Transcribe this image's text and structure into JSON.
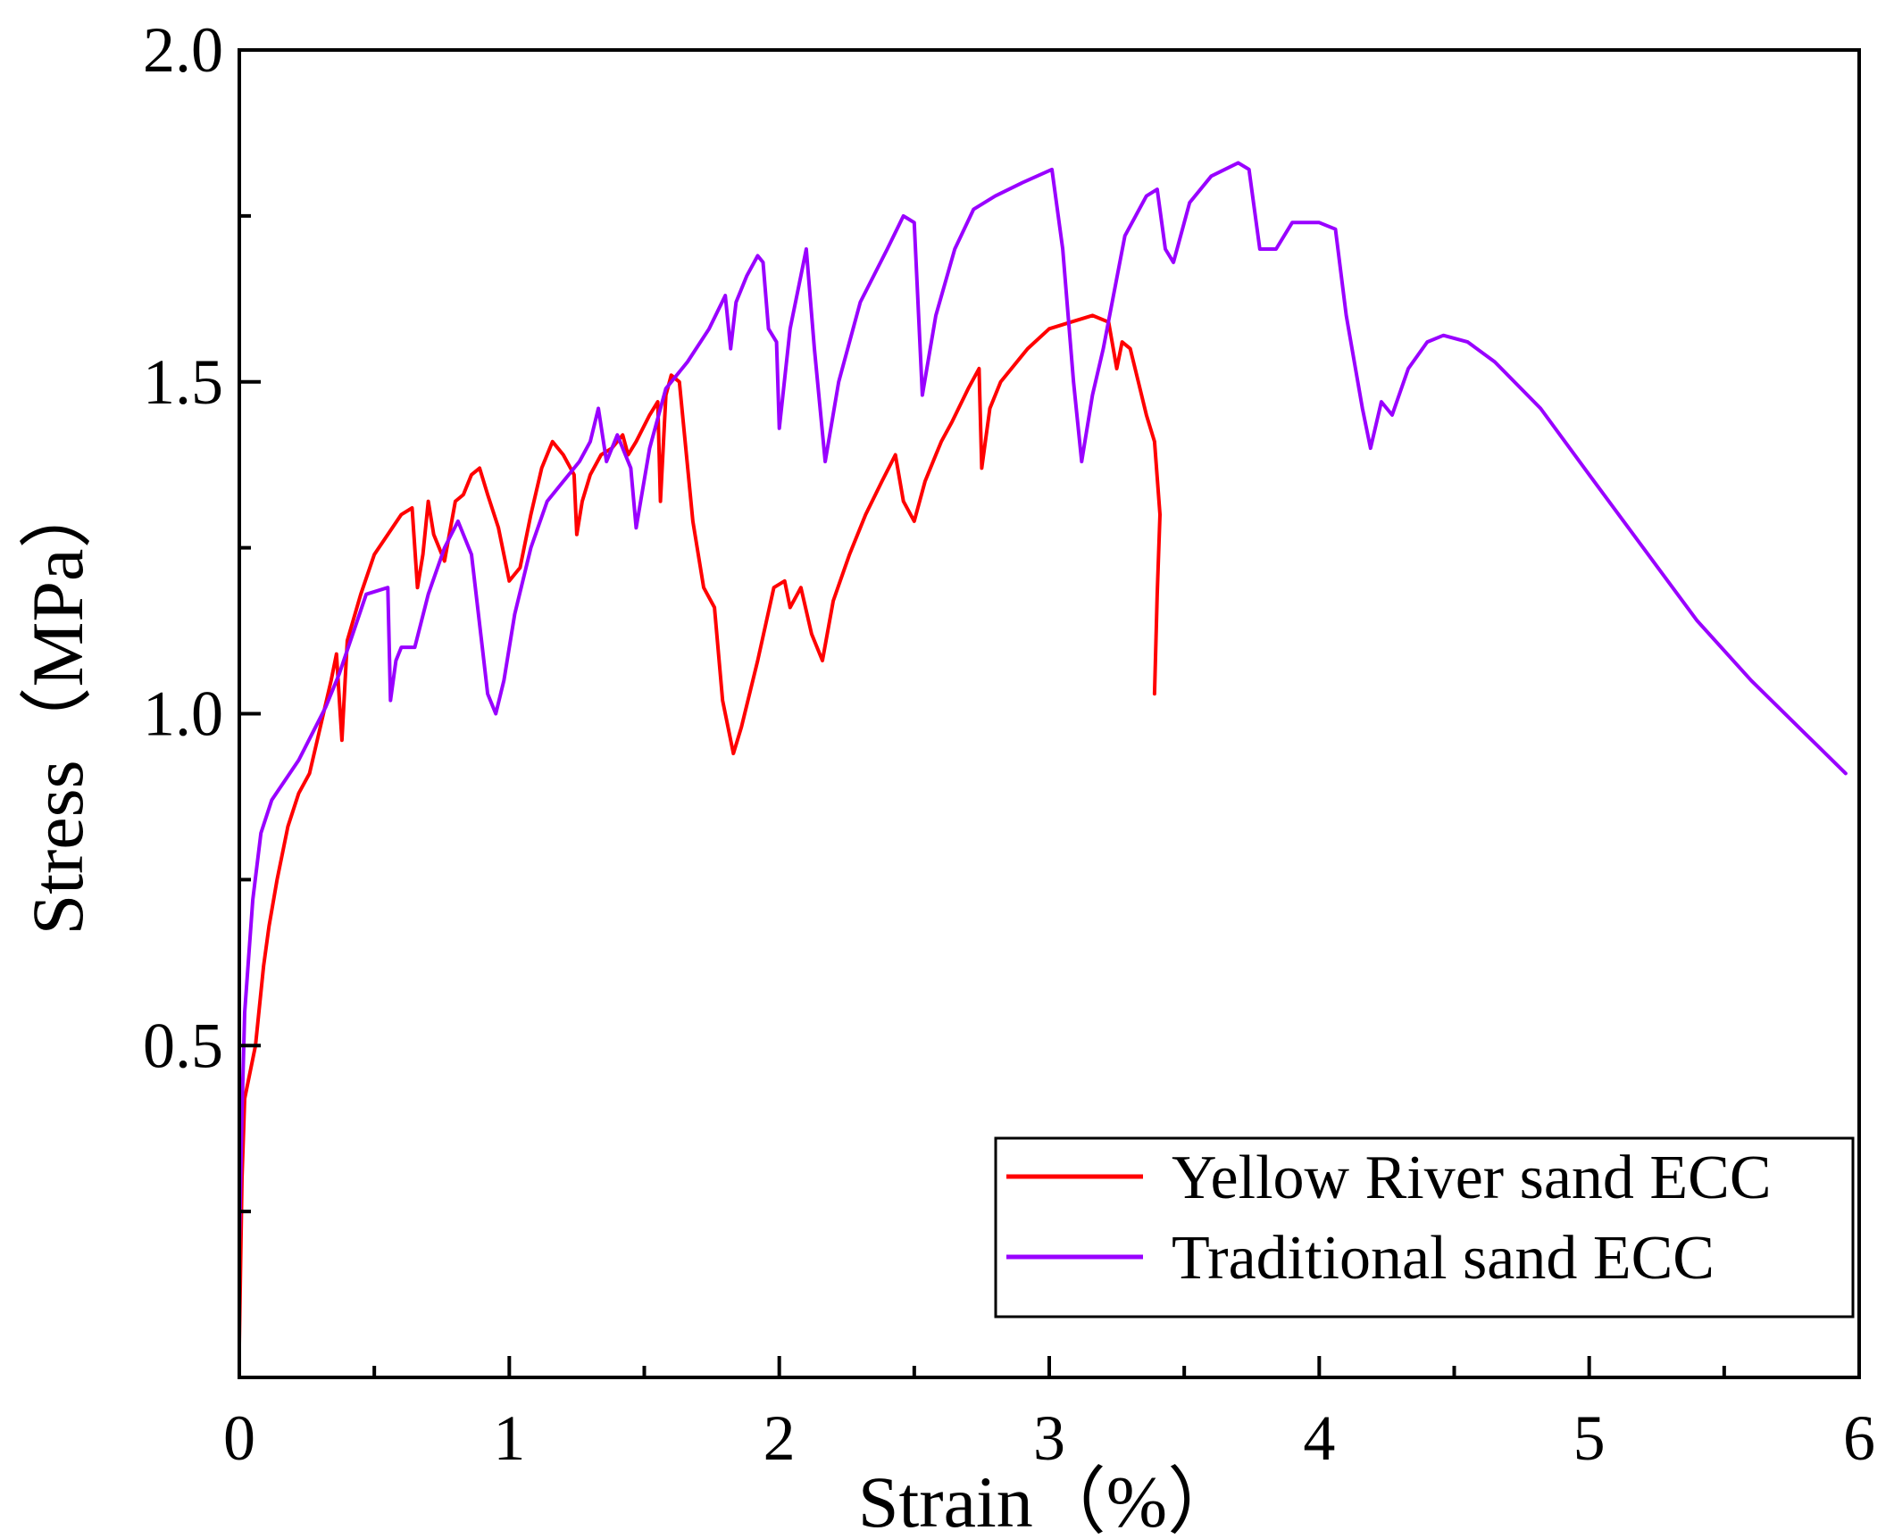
{
  "chart_data": {
    "type": "line",
    "title": "",
    "xlabel": "Strain（%）",
    "ylabel": "Stress（MPa）",
    "xlim": [
      0,
      6
    ],
    "ylim": [
      0,
      2.0
    ],
    "x_ticks": [
      "0",
      "1",
      "2",
      "3",
      "4",
      "5",
      "6"
    ],
    "y_ticks": [
      "0.5",
      "1.0",
      "1.5",
      "2.0"
    ],
    "grid": false,
    "legend_position": "bottom-right",
    "series": [
      {
        "name": "Yellow River sand ECC",
        "color": "#ff0000",
        "points": [
          [
            0.0,
            0.05
          ],
          [
            0.01,
            0.3
          ],
          [
            0.02,
            0.42
          ],
          [
            0.06,
            0.5
          ],
          [
            0.09,
            0.62
          ],
          [
            0.11,
            0.68
          ],
          [
            0.14,
            0.75
          ],
          [
            0.18,
            0.83
          ],
          [
            0.22,
            0.88
          ],
          [
            0.26,
            0.91
          ],
          [
            0.3,
            0.98
          ],
          [
            0.34,
            1.05
          ],
          [
            0.36,
            1.09
          ],
          [
            0.38,
            0.96
          ],
          [
            0.4,
            1.11
          ],
          [
            0.45,
            1.18
          ],
          [
            0.5,
            1.24
          ],
          [
            0.55,
            1.27
          ],
          [
            0.6,
            1.3
          ],
          [
            0.64,
            1.31
          ],
          [
            0.66,
            1.19
          ],
          [
            0.68,
            1.24
          ],
          [
            0.7,
            1.32
          ],
          [
            0.72,
            1.27
          ],
          [
            0.76,
            1.23
          ],
          [
            0.8,
            1.32
          ],
          [
            0.83,
            1.33
          ],
          [
            0.86,
            1.36
          ],
          [
            0.89,
            1.37
          ],
          [
            0.92,
            1.33
          ],
          [
            0.96,
            1.28
          ],
          [
            1.0,
            1.2
          ],
          [
            1.04,
            1.22
          ],
          [
            1.08,
            1.3
          ],
          [
            1.12,
            1.37
          ],
          [
            1.16,
            1.41
          ],
          [
            1.2,
            1.39
          ],
          [
            1.24,
            1.36
          ],
          [
            1.25,
            1.27
          ],
          [
            1.27,
            1.32
          ],
          [
            1.3,
            1.36
          ],
          [
            1.34,
            1.39
          ],
          [
            1.38,
            1.4
          ],
          [
            1.42,
            1.42
          ],
          [
            1.44,
            1.39
          ],
          [
            1.47,
            1.41
          ],
          [
            1.52,
            1.45
          ],
          [
            1.55,
            1.47
          ],
          [
            1.56,
            1.32
          ],
          [
            1.58,
            1.48
          ],
          [
            1.6,
            1.51
          ],
          [
            1.63,
            1.5
          ],
          [
            1.68,
            1.29
          ],
          [
            1.72,
            1.19
          ],
          [
            1.76,
            1.16
          ],
          [
            1.79,
            1.02
          ],
          [
            1.83,
            0.94
          ],
          [
            1.86,
            0.98
          ],
          [
            1.92,
            1.08
          ],
          [
            1.98,
            1.19
          ],
          [
            2.02,
            1.2
          ],
          [
            2.04,
            1.16
          ],
          [
            2.08,
            1.19
          ],
          [
            2.12,
            1.12
          ],
          [
            2.16,
            1.08
          ],
          [
            2.2,
            1.17
          ],
          [
            2.26,
            1.24
          ],
          [
            2.32,
            1.3
          ],
          [
            2.38,
            1.35
          ],
          [
            2.43,
            1.39
          ],
          [
            2.46,
            1.32
          ],
          [
            2.5,
            1.29
          ],
          [
            2.54,
            1.35
          ],
          [
            2.58,
            1.39
          ],
          [
            2.6,
            1.41
          ],
          [
            2.64,
            1.44
          ],
          [
            2.7,
            1.49
          ],
          [
            2.74,
            1.52
          ],
          [
            2.75,
            1.37
          ],
          [
            2.78,
            1.46
          ],
          [
            2.82,
            1.5
          ],
          [
            2.86,
            1.52
          ],
          [
            2.92,
            1.55
          ],
          [
            3.0,
            1.58
          ],
          [
            3.08,
            1.59
          ],
          [
            3.16,
            1.6
          ],
          [
            3.22,
            1.59
          ],
          [
            3.25,
            1.52
          ],
          [
            3.27,
            1.56
          ],
          [
            3.3,
            1.55
          ],
          [
            3.33,
            1.5
          ],
          [
            3.36,
            1.45
          ],
          [
            3.39,
            1.41
          ],
          [
            3.41,
            1.3
          ],
          [
            3.4,
            1.18
          ],
          [
            3.39,
            1.03
          ]
        ]
      },
      {
        "name": "Traditional sand ECC",
        "color": "#9900ff",
        "points": [
          [
            0.0,
            0.0
          ],
          [
            0.0,
            0.2
          ],
          [
            0.01,
            0.4
          ],
          [
            0.02,
            0.55
          ],
          [
            0.05,
            0.72
          ],
          [
            0.08,
            0.82
          ],
          [
            0.12,
            0.87
          ],
          [
            0.17,
            0.9
          ],
          [
            0.22,
            0.93
          ],
          [
            0.27,
            0.97
          ],
          [
            0.32,
            1.01
          ],
          [
            0.37,
            1.06
          ],
          [
            0.42,
            1.12
          ],
          [
            0.47,
            1.18
          ],
          [
            0.55,
            1.19
          ],
          [
            0.56,
            1.02
          ],
          [
            0.58,
            1.08
          ],
          [
            0.6,
            1.1
          ],
          [
            0.65,
            1.1
          ],
          [
            0.7,
            1.18
          ],
          [
            0.76,
            1.25
          ],
          [
            0.81,
            1.29
          ],
          [
            0.86,
            1.24
          ],
          [
            0.9,
            1.1
          ],
          [
            0.92,
            1.03
          ],
          [
            0.95,
            1.0
          ],
          [
            0.98,
            1.05
          ],
          [
            1.02,
            1.15
          ],
          [
            1.08,
            1.25
          ],
          [
            1.14,
            1.32
          ],
          [
            1.2,
            1.35
          ],
          [
            1.26,
            1.38
          ],
          [
            1.3,
            1.41
          ],
          [
            1.33,
            1.46
          ],
          [
            1.36,
            1.38
          ],
          [
            1.4,
            1.42
          ],
          [
            1.45,
            1.37
          ],
          [
            1.47,
            1.28
          ],
          [
            1.52,
            1.4
          ],
          [
            1.58,
            1.49
          ],
          [
            1.66,
            1.53
          ],
          [
            1.74,
            1.58
          ],
          [
            1.8,
            1.63
          ],
          [
            1.82,
            1.55
          ],
          [
            1.84,
            1.62
          ],
          [
            1.88,
            1.66
          ],
          [
            1.92,
            1.69
          ],
          [
            1.94,
            1.68
          ],
          [
            1.96,
            1.58
          ],
          [
            1.99,
            1.56
          ],
          [
            2.0,
            1.43
          ],
          [
            2.04,
            1.58
          ],
          [
            2.08,
            1.66
          ],
          [
            2.1,
            1.7
          ],
          [
            2.13,
            1.55
          ],
          [
            2.17,
            1.38
          ],
          [
            2.22,
            1.5
          ],
          [
            2.3,
            1.62
          ],
          [
            2.4,
            1.7
          ],
          [
            2.46,
            1.75
          ],
          [
            2.5,
            1.74
          ],
          [
            2.53,
            1.48
          ],
          [
            2.58,
            1.6
          ],
          [
            2.65,
            1.7
          ],
          [
            2.72,
            1.76
          ],
          [
            2.8,
            1.78
          ],
          [
            2.9,
            1.8
          ],
          [
            3.01,
            1.82
          ],
          [
            3.05,
            1.7
          ],
          [
            3.09,
            1.5
          ],
          [
            3.12,
            1.38
          ],
          [
            3.16,
            1.48
          ],
          [
            3.2,
            1.55
          ],
          [
            3.28,
            1.72
          ],
          [
            3.36,
            1.78
          ],
          [
            3.4,
            1.79
          ],
          [
            3.43,
            1.7
          ],
          [
            3.46,
            1.68
          ],
          [
            3.52,
            1.77
          ],
          [
            3.6,
            1.81
          ],
          [
            3.7,
            1.83
          ],
          [
            3.74,
            1.82
          ],
          [
            3.78,
            1.7
          ],
          [
            3.84,
            1.7
          ],
          [
            3.9,
            1.74
          ],
          [
            4.0,
            1.74
          ],
          [
            4.06,
            1.73
          ],
          [
            4.1,
            1.6
          ],
          [
            4.16,
            1.46
          ],
          [
            4.19,
            1.4
          ],
          [
            4.23,
            1.47
          ],
          [
            4.27,
            1.45
          ],
          [
            4.33,
            1.52
          ],
          [
            4.4,
            1.56
          ],
          [
            4.46,
            1.57
          ],
          [
            4.55,
            1.56
          ],
          [
            4.65,
            1.53
          ],
          [
            4.82,
            1.46
          ],
          [
            5.0,
            1.36
          ],
          [
            5.2,
            1.25
          ],
          [
            5.4,
            1.14
          ],
          [
            5.6,
            1.05
          ],
          [
            5.8,
            0.97
          ],
          [
            5.95,
            0.91
          ]
        ]
      }
    ]
  }
}
